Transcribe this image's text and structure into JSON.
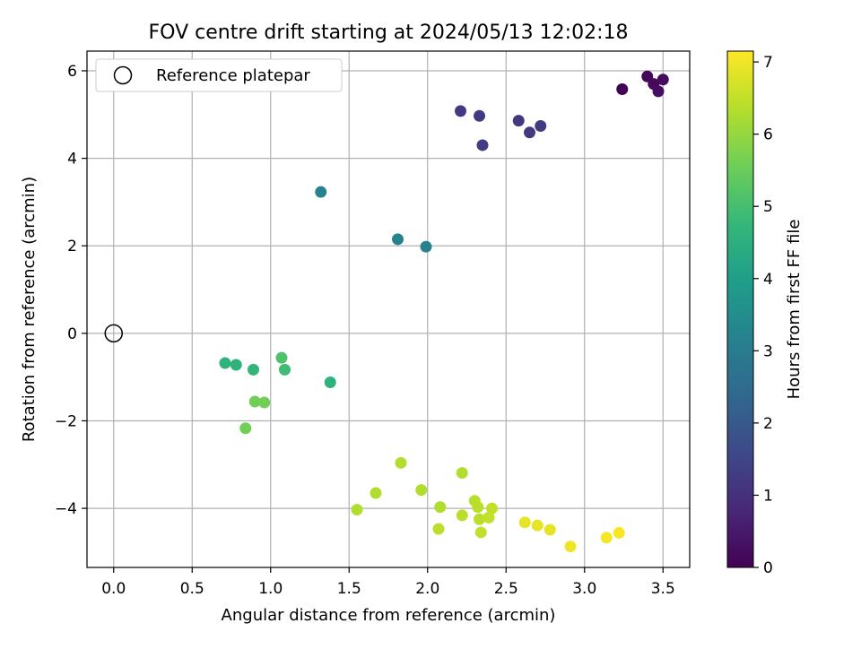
{
  "chart_data": {
    "type": "scatter",
    "title": "FOV centre drift starting at 2024/05/13 12:02:18",
    "xlabel": "Angular distance from reference (arcmin)",
    "ylabel": "Rotation from reference (arcmin)",
    "xlim": [
      -0.17,
      3.67
    ],
    "ylim": [
      -5.35,
      6.45
    ],
    "x_ticks": [
      0.0,
      0.5,
      1.0,
      1.5,
      2.0,
      2.5,
      3.0,
      3.5
    ],
    "x_tick_labels": [
      "0.0",
      "0.5",
      "1.0",
      "1.5",
      "2.0",
      "2.5",
      "3.0",
      "3.5"
    ],
    "y_ticks": [
      -4,
      -2,
      0,
      2,
      4,
      6
    ],
    "y_tick_labels": [
      "−4",
      "−2",
      "0",
      "2",
      "4",
      "6"
    ],
    "grid": true,
    "legend": {
      "placement": "upper-left",
      "entries": [
        "Reference platepar"
      ]
    },
    "reference_point": {
      "x": 0.0,
      "y": 0.0
    },
    "colorbar": {
      "label": "Hours from first FF file",
      "range": [
        0,
        7.15
      ],
      "ticks": [
        0,
        1,
        2,
        3,
        4,
        5,
        6,
        7
      ],
      "colormap": [
        "#440154",
        "#482878",
        "#3e4989",
        "#31688e",
        "#26828e",
        "#1f9e89",
        "#35b779",
        "#6ece58",
        "#b5de2b",
        "#fde725"
      ]
    },
    "points": [
      {
        "x": 3.24,
        "y": 5.58,
        "hours": 0.02
      },
      {
        "x": 3.4,
        "y": 5.87,
        "hours": 0.1
      },
      {
        "x": 3.44,
        "y": 5.7,
        "hours": 0.15
      },
      {
        "x": 3.5,
        "y": 5.8,
        "hours": 0.2
      },
      {
        "x": 3.47,
        "y": 5.53,
        "hours": 0.25
      },
      {
        "x": 2.21,
        "y": 5.08,
        "hours": 1.2
      },
      {
        "x": 2.33,
        "y": 4.97,
        "hours": 1.25
      },
      {
        "x": 2.35,
        "y": 4.3,
        "hours": 1.3
      },
      {
        "x": 2.58,
        "y": 4.86,
        "hours": 1.15
      },
      {
        "x": 2.65,
        "y": 4.59,
        "hours": 1.2
      },
      {
        "x": 2.72,
        "y": 4.74,
        "hours": 1.25
      },
      {
        "x": 1.32,
        "y": 3.23,
        "hours": 3.2
      },
      {
        "x": 1.81,
        "y": 2.15,
        "hours": 3.2
      },
      {
        "x": 1.99,
        "y": 1.98,
        "hours": 3.2
      },
      {
        "x": 0.71,
        "y": -0.68,
        "hours": 4.6
      },
      {
        "x": 0.78,
        "y": -0.72,
        "hours": 4.6
      },
      {
        "x": 0.89,
        "y": -0.83,
        "hours": 4.7
      },
      {
        "x": 1.07,
        "y": -0.56,
        "hours": 5.1
      },
      {
        "x": 1.09,
        "y": -0.83,
        "hours": 4.9
      },
      {
        "x": 1.38,
        "y": -1.12,
        "hours": 4.6
      },
      {
        "x": 0.9,
        "y": -1.56,
        "hours": 5.6
      },
      {
        "x": 0.96,
        "y": -1.58,
        "hours": 5.6
      },
      {
        "x": 0.84,
        "y": -2.17,
        "hours": 5.6
      },
      {
        "x": 1.55,
        "y": -4.03,
        "hours": 6.3
      },
      {
        "x": 1.67,
        "y": -3.65,
        "hours": 6.3
      },
      {
        "x": 1.83,
        "y": -2.96,
        "hours": 6.3
      },
      {
        "x": 1.96,
        "y": -3.58,
        "hours": 6.3
      },
      {
        "x": 2.08,
        "y": -3.97,
        "hours": 6.3
      },
      {
        "x": 2.07,
        "y": -4.47,
        "hours": 6.4
      },
      {
        "x": 2.22,
        "y": -3.19,
        "hours": 6.3
      },
      {
        "x": 2.22,
        "y": -4.16,
        "hours": 6.4
      },
      {
        "x": 2.3,
        "y": -3.83,
        "hours": 6.4
      },
      {
        "x": 2.32,
        "y": -3.97,
        "hours": 6.4
      },
      {
        "x": 2.33,
        "y": -4.25,
        "hours": 6.4
      },
      {
        "x": 2.34,
        "y": -4.55,
        "hours": 6.5
      },
      {
        "x": 2.39,
        "y": -4.21,
        "hours": 6.5
      },
      {
        "x": 2.41,
        "y": -4.0,
        "hours": 6.5
      },
      {
        "x": 2.62,
        "y": -4.32,
        "hours": 6.9
      },
      {
        "x": 2.7,
        "y": -4.39,
        "hours": 6.9
      },
      {
        "x": 2.78,
        "y": -4.49,
        "hours": 6.9
      },
      {
        "x": 2.91,
        "y": -4.87,
        "hours": 7.0
      },
      {
        "x": 3.14,
        "y": -4.67,
        "hours": 7.05
      },
      {
        "x": 3.22,
        "y": -4.56,
        "hours": 7.1
      }
    ]
  }
}
